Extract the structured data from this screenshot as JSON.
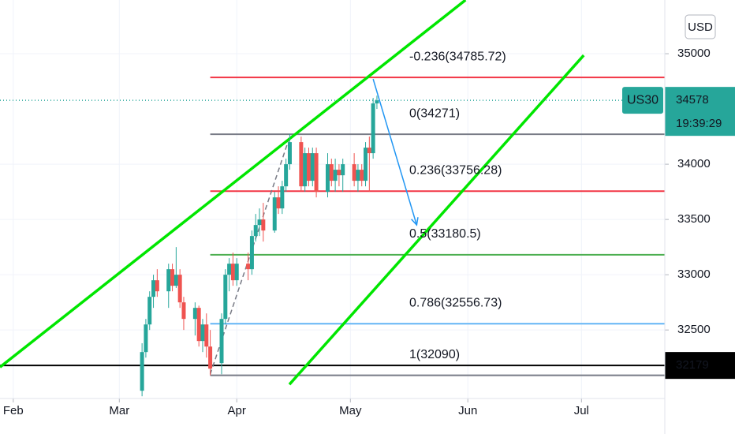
{
  "chart_data": {
    "type": "candlestick",
    "symbol": "US30",
    "currency": "USD",
    "countdown": "19:39:29",
    "last_price": 34578,
    "up_color": "#26a69a",
    "down_color": "#ef5350",
    "grid": true,
    "xlim": [
      28.5,
      204
    ],
    "ylim": [
      31880,
      35486
    ],
    "xticks": [
      {
        "value": 32,
        "label": "Feb"
      },
      {
        "value": 60,
        "label": "Mar"
      },
      {
        "value": 91,
        "label": "Apr"
      },
      {
        "value": 121,
        "label": "May"
      },
      {
        "value": 152,
        "label": "Jun"
      },
      {
        "value": 182,
        "label": "Jul"
      }
    ],
    "yticks": [
      32500,
      33000,
      33500,
      34000,
      35000
    ],
    "x": [
      66,
      67,
      68,
      69,
      70,
      73,
      74,
      75,
      76,
      77,
      80,
      81,
      82,
      83,
      84,
      87,
      88,
      89,
      90,
      91,
      94,
      95,
      96,
      97,
      98,
      101,
      102,
      103,
      104,
      105,
      108,
      109,
      110,
      111,
      112,
      115,
      116,
      117,
      118,
      119,
      122,
      123,
      124,
      125,
      126,
      127,
      128
    ],
    "open": [
      31950,
      32300,
      32550,
      32800,
      32950,
      32850,
      33050,
      32900,
      33000,
      32750,
      32600,
      32700,
      32400,
      32550,
      32350,
      32200,
      32600,
      33000,
      33100,
      32950,
      33100,
      33050,
      33350,
      33450,
      33500,
      33400,
      33700,
      33600,
      33800,
      34000,
      34200,
      33800,
      34100,
      33850,
      34100,
      33750,
      34000,
      33850,
      33950,
      33900,
      34000,
      33850,
      33950,
      33850,
      34150,
      34100,
      34550
    ],
    "high": [
      32380,
      32600,
      32850,
      33000,
      33050,
      33100,
      33100,
      33250,
      33050,
      32800,
      32750,
      32720,
      32600,
      32650,
      32500,
      32650,
      33050,
      33150,
      33200,
      33150,
      33200,
      33400,
      33550,
      33600,
      33650,
      33750,
      33800,
      33850,
      34050,
      34271,
      34250,
      34150,
      34150,
      34150,
      34150,
      34100,
      34050,
      34050,
      34000,
      34050,
      34100,
      34000,
      34000,
      34200,
      34250,
      34600,
      34620
    ],
    "low": [
      31900,
      32250,
      32500,
      32700,
      32800,
      32700,
      32850,
      32880,
      32700,
      32500,
      32450,
      32350,
      32300,
      32250,
      32090,
      32100,
      32550,
      32850,
      32900,
      32900,
      32950,
      33000,
      33300,
      33350,
      33300,
      33380,
      33550,
      33550,
      33750,
      33950,
      33750,
      33750,
      33800,
      33800,
      33700,
      33700,
      33800,
      33750,
      33800,
      33750,
      33800,
      33750,
      33800,
      33800,
      33750,
      34050,
      34500
    ],
    "close": [
      32300,
      32550,
      32800,
      32950,
      32850,
      33050,
      32900,
      33000,
      32750,
      32600,
      32700,
      32400,
      32550,
      32350,
      32150,
      32600,
      33000,
      33100,
      32950,
      33100,
      33050,
      33350,
      33450,
      33500,
      33400,
      33700,
      33600,
      33800,
      34000,
      34200,
      33800,
      34100,
      33850,
      34100,
      33750,
      34000,
      33850,
      33950,
      33900,
      34000,
      33850,
      33950,
      33850,
      34150,
      34100,
      34550,
      34578
    ],
    "fib_levels": [
      {
        "label": "-0.236(34785.72)",
        "value": 34785.72,
        "color": "#f23645"
      },
      {
        "label": "0(34271)",
        "value": 34271,
        "color": "#787b86"
      },
      {
        "label": "0.236(33756.28)",
        "value": 33756.28,
        "color": "#f23645"
      },
      {
        "label": "0.5(33180.5)",
        "value": 33180.5,
        "color": "#4caf50"
      },
      {
        "label": "0.786(32556.73)",
        "value": 32556.73,
        "color": "#64b5f6"
      },
      {
        "label": "1(32090)",
        "value": 32090,
        "color": "#787b86"
      }
    ],
    "fib_start": 84,
    "trend_lines": [
      {
        "x": [
          28.5,
          151.4
        ],
        "values": [
          32164,
          35486
        ],
        "color": "#00e600"
      },
      {
        "x": [
          104.9,
          182.6
        ],
        "values": [
          32007,
          34986
        ],
        "color": "#00e600"
      }
    ],
    "dashed_line": {
      "x": [
        84,
        105
      ],
      "values": [
        32100,
        34250
      ],
      "color": "#787b86"
    },
    "arrow": {
      "x": [
        127,
        138.5
      ],
      "values": [
        34771,
        33450
      ],
      "color": "#2196f3"
    },
    "horizontal_line": {
      "value": 32179,
      "color": "#000000"
    },
    "price_line_color": "#26a69a"
  }
}
